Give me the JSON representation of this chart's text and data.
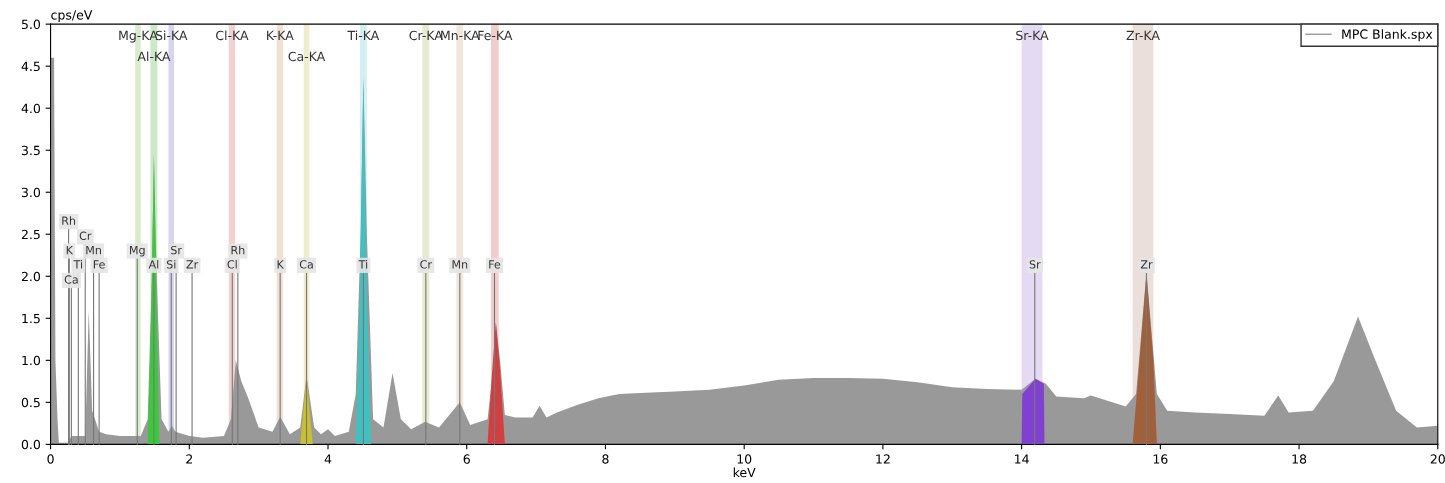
{
  "chart_data": {
    "type": "area",
    "xlabel": "keV",
    "ylabel": "cps/eV",
    "xlim": [
      0,
      20
    ],
    "ylim": [
      0,
      5
    ],
    "xticks": [
      0,
      2,
      4,
      6,
      8,
      10,
      12,
      14,
      16,
      18,
      20
    ],
    "yticks": [
      {
        "value": 0,
        "label": "0.0"
      },
      {
        "value": 0.5,
        "label": "0.5"
      },
      {
        "value": 1,
        "label": "1.0"
      },
      {
        "value": 1.5,
        "label": "1.5"
      },
      {
        "value": 2,
        "label": "2.0"
      },
      {
        "value": 2.5,
        "label": "2.5"
      },
      {
        "value": 3,
        "label": "3.0"
      },
      {
        "value": 3.5,
        "label": "3.5"
      },
      {
        "value": 4,
        "label": "4.0"
      },
      {
        "value": 4.5,
        "label": "4.5"
      },
      {
        "value": 5,
        "label": "5.0"
      }
    ],
    "grid": false,
    "legend": "top right",
    "series": [
      {
        "name": "MPC Blank.spx",
        "color": "#999999",
        "x": [
          0.0,
          0.05,
          0.07,
          0.1,
          0.12,
          0.25,
          0.3,
          0.5,
          0.55,
          0.6,
          0.7,
          0.8,
          1.0,
          1.3,
          1.4,
          1.46,
          1.49,
          1.53,
          1.6,
          1.7,
          1.75,
          1.8,
          2.0,
          2.2,
          2.5,
          2.6,
          2.67,
          2.75,
          2.85,
          3.0,
          3.2,
          3.31,
          3.45,
          3.6,
          3.69,
          3.8,
          3.9,
          4.0,
          4.1,
          4.3,
          4.4,
          4.47,
          4.51,
          4.56,
          4.65,
          4.8,
          4.93,
          5.05,
          5.2,
          5.4,
          5.6,
          5.9,
          6.05,
          6.3,
          6.38,
          6.42,
          6.48,
          6.55,
          6.7,
          6.95,
          7.05,
          7.15,
          7.3,
          7.6,
          7.9,
          8.2,
          8.5,
          9.0,
          9.5,
          10.0,
          10.5,
          11.0,
          11.5,
          12.0,
          12.5,
          13.0,
          13.5,
          14.0,
          14.2,
          14.35,
          14.5,
          14.9,
          15.0,
          15.5,
          15.65,
          15.8,
          15.95,
          16.1,
          16.5,
          17.0,
          17.5,
          17.7,
          17.85,
          18.2,
          18.5,
          18.85,
          19.1,
          19.4,
          19.7,
          20.0
        ],
        "values": [
          4.6,
          4.6,
          1.0,
          0.3,
          0.02,
          0.02,
          0.1,
          0.1,
          1.6,
          0.4,
          0.15,
          0.12,
          0.1,
          0.1,
          0.3,
          2.0,
          3.45,
          2.0,
          0.3,
          0.15,
          0.22,
          0.15,
          0.1,
          0.08,
          0.1,
          0.3,
          1.0,
          0.75,
          0.55,
          0.2,
          0.15,
          0.33,
          0.12,
          0.2,
          0.82,
          0.2,
          0.12,
          0.18,
          0.1,
          0.15,
          0.6,
          2.5,
          4.38,
          2.5,
          0.3,
          0.2,
          0.85,
          0.3,
          0.18,
          0.27,
          0.2,
          0.5,
          0.23,
          0.3,
          0.9,
          1.45,
          1.0,
          0.35,
          0.32,
          0.32,
          0.46,
          0.32,
          0.38,
          0.47,
          0.55,
          0.6,
          0.61,
          0.63,
          0.65,
          0.7,
          0.77,
          0.79,
          0.79,
          0.78,
          0.74,
          0.68,
          0.66,
          0.65,
          0.78,
          0.72,
          0.57,
          0.55,
          0.58,
          0.45,
          0.6,
          2.05,
          0.6,
          0.4,
          0.38,
          0.36,
          0.34,
          0.58,
          0.38,
          0.4,
          0.75,
          1.52,
          1.0,
          0.4,
          0.2,
          0.22
        ]
      },
      {
        "color": "#3cc83c",
        "x": [
          1.4,
          1.45,
          1.49,
          1.53,
          1.57
        ],
        "values": [
          0,
          1.5,
          3.45,
          1.5,
          0
        ]
      },
      {
        "color": "#c8c030",
        "x": [
          3.6,
          3.69,
          3.78
        ],
        "values": [
          0,
          0.8,
          0
        ]
      },
      {
        "color": "#40c0c0",
        "x": [
          4.4,
          4.46,
          4.51,
          4.56,
          4.62
        ],
        "values": [
          0,
          1.8,
          4.35,
          1.8,
          0
        ]
      },
      {
        "color": "#d04040",
        "x": [
          6.3,
          6.36,
          6.42,
          6.48,
          6.55
        ],
        "values": [
          0,
          0.8,
          1.45,
          0.9,
          0
        ]
      },
      {
        "color": "#8040d0",
        "x": [
          14.0,
          14.01,
          14.2,
          14.32,
          14.33
        ],
        "values": [
          0,
          0.6,
          0.78,
          0.72,
          0
        ]
      },
      {
        "color": "#a0603c",
        "x": [
          15.6,
          15.7,
          15.8,
          15.9,
          15.95
        ],
        "values": [
          0,
          1.0,
          2.04,
          1.0,
          0
        ]
      }
    ],
    "bands": [
      {
        "axis": "x",
        "from": 1.22,
        "to": 1.3,
        "label": "Mg-KA",
        "color": "#d5e8c8"
      },
      {
        "axis": "x",
        "from": 1.44,
        "to": 1.54,
        "label": "Al-KA",
        "color": "#c8e6c0"
      },
      {
        "axis": "x",
        "from": 1.7,
        "to": 1.78,
        "label": "Si-KA",
        "color": "#d0d0f0"
      },
      {
        "axis": "x",
        "from": 2.57,
        "to": 2.66,
        "label": "Cl-KA",
        "color": "#f2cccc"
      },
      {
        "axis": "x",
        "from": 3.26,
        "to": 3.35,
        "label": "K-KA",
        "color": "#f0dccc"
      },
      {
        "axis": "x",
        "from": 3.65,
        "to": 3.73,
        "label": "Ca-KA",
        "color": "#ecebc8"
      },
      {
        "axis": "x",
        "from": 4.46,
        "to": 4.56,
        "label": "Ti-KA",
        "color": "#cdeeee"
      },
      {
        "axis": "x",
        "from": 5.36,
        "to": 5.46,
        "label": "Cr-KA",
        "color": "#e2e8cc"
      },
      {
        "axis": "x",
        "from": 5.85,
        "to": 5.95,
        "label": "Mn-KA",
        "color": "#efe3da"
      },
      {
        "axis": "x",
        "from": 6.35,
        "to": 6.46,
        "label": "Fe-KA",
        "color": "#f2c6c6"
      },
      {
        "axis": "x",
        "from": 14.0,
        "to": 14.3,
        "label": "Sr-KA",
        "color": "#e2d6f2"
      },
      {
        "axis": "x",
        "from": 15.6,
        "to": 15.9,
        "label": "Zr-KA",
        "color": "#e8dbd6"
      }
    ],
    "annotations": [
      {
        "text": "Rh",
        "x": 0.26,
        "y": 2.65
      },
      {
        "text": "Cr",
        "x": 0.5,
        "y": 2.47
      },
      {
        "text": "K",
        "x": 0.27,
        "y": 2.3
      },
      {
        "text": "Mn",
        "x": 0.62,
        "y": 2.3
      },
      {
        "text": "Ti",
        "x": 0.4,
        "y": 2.13
      },
      {
        "text": "Fe",
        "x": 0.7,
        "y": 2.13
      },
      {
        "text": "Ca",
        "x": 0.3,
        "y": 1.95
      },
      {
        "text": "Mg",
        "x": 1.25,
        "y": 2.3
      },
      {
        "text": "Al",
        "x": 1.49,
        "y": 2.13
      },
      {
        "text": "Sr",
        "x": 1.81,
        "y": 2.3
      },
      {
        "text": "Si",
        "x": 1.74,
        "y": 2.13
      },
      {
        "text": "Zr",
        "x": 2.04,
        "y": 2.13
      },
      {
        "text": "Rh",
        "x": 2.7,
        "y": 2.3
      },
      {
        "text": "Cl",
        "x": 2.62,
        "y": 2.13
      },
      {
        "text": "K",
        "x": 3.31,
        "y": 2.13
      },
      {
        "text": "Ca",
        "x": 3.69,
        "y": 2.13
      },
      {
        "text": "Ti",
        "x": 4.51,
        "y": 2.13
      },
      {
        "text": "Cr",
        "x": 5.41,
        "y": 2.13
      },
      {
        "text": "Mn",
        "x": 5.9,
        "y": 2.13
      },
      {
        "text": "Fe",
        "x": 6.4,
        "y": 2.13
      },
      {
        "text": "Sr",
        "x": 14.19,
        "y": 2.13
      },
      {
        "text": "Zr",
        "x": 15.8,
        "y": 2.13
      }
    ]
  }
}
